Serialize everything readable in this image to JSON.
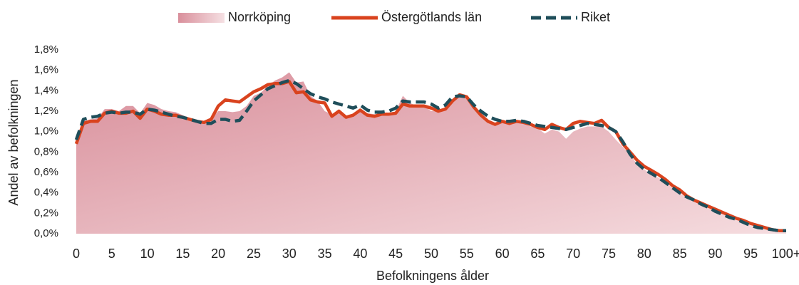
{
  "chart_data": {
    "type": "line",
    "x": [
      0,
      1,
      2,
      3,
      4,
      5,
      6,
      7,
      8,
      9,
      10,
      11,
      12,
      13,
      14,
      15,
      16,
      17,
      18,
      19,
      20,
      21,
      22,
      23,
      24,
      25,
      26,
      27,
      28,
      29,
      30,
      31,
      32,
      33,
      34,
      35,
      36,
      37,
      38,
      39,
      40,
      41,
      42,
      43,
      44,
      45,
      46,
      47,
      48,
      49,
      50,
      51,
      52,
      53,
      54,
      55,
      56,
      57,
      58,
      59,
      60,
      61,
      62,
      63,
      64,
      65,
      66,
      67,
      68,
      69,
      70,
      71,
      72,
      73,
      74,
      75,
      76,
      77,
      78,
      79,
      80,
      81,
      82,
      83,
      84,
      85,
      86,
      87,
      88,
      89,
      90,
      91,
      92,
      93,
      94,
      95,
      96,
      97,
      98,
      99,
      100
    ],
    "series": [
      {
        "name": "Norrköping",
        "kind": "area",
        "color": "#dc9ca6",
        "values": [
          0.9,
          1.1,
          1.12,
          1.13,
          1.22,
          1.22,
          1.2,
          1.25,
          1.25,
          1.18,
          1.28,
          1.26,
          1.22,
          1.2,
          1.19,
          1.16,
          1.13,
          1.1,
          1.09,
          1.12,
          1.2,
          1.2,
          1.19,
          1.2,
          1.25,
          1.35,
          1.38,
          1.45,
          1.5,
          1.53,
          1.58,
          1.48,
          1.49,
          1.35,
          1.3,
          1.2,
          1.17,
          1.18,
          1.15,
          1.16,
          1.2,
          1.18,
          1.17,
          1.16,
          1.17,
          1.2,
          1.35,
          1.28,
          1.25,
          1.25,
          1.2,
          1.2,
          1.24,
          1.3,
          1.35,
          1.33,
          1.22,
          1.15,
          1.1,
          1.08,
          1.1,
          1.08,
          1.1,
          1.08,
          1.05,
          1.03,
          0.98,
          1.02,
          1.0,
          0.93,
          1.0,
          1.03,
          1.05,
          1.05,
          1.05,
          1.0,
          0.92,
          0.85,
          0.78,
          0.68,
          0.63,
          0.58,
          0.55,
          0.5,
          0.45,
          0.4,
          0.35,
          0.32,
          0.3,
          0.27,
          0.23,
          0.2,
          0.17,
          0.14,
          0.11,
          0.08,
          0.06,
          0.05,
          0.04,
          0.03,
          0.03
        ]
      },
      {
        "name": "Östergötlands län",
        "kind": "line",
        "color": "#d9431e",
        "values": [
          0.88,
          1.08,
          1.1,
          1.1,
          1.18,
          1.2,
          1.18,
          1.18,
          1.2,
          1.13,
          1.22,
          1.2,
          1.17,
          1.16,
          1.16,
          1.14,
          1.12,
          1.1,
          1.09,
          1.12,
          1.25,
          1.31,
          1.3,
          1.29,
          1.34,
          1.39,
          1.42,
          1.46,
          1.47,
          1.47,
          1.49,
          1.38,
          1.39,
          1.31,
          1.29,
          1.28,
          1.15,
          1.2,
          1.14,
          1.16,
          1.21,
          1.16,
          1.15,
          1.17,
          1.17,
          1.18,
          1.27,
          1.25,
          1.25,
          1.25,
          1.23,
          1.2,
          1.22,
          1.3,
          1.36,
          1.34,
          1.24,
          1.16,
          1.1,
          1.07,
          1.1,
          1.08,
          1.1,
          1.09,
          1.07,
          1.04,
          1.02,
          1.07,
          1.04,
          1.02,
          1.08,
          1.1,
          1.09,
          1.08,
          1.11,
          1.04,
          1.0,
          0.88,
          0.8,
          0.72,
          0.66,
          0.62,
          0.58,
          0.53,
          0.47,
          0.43,
          0.37,
          0.33,
          0.3,
          0.27,
          0.24,
          0.21,
          0.18,
          0.15,
          0.13,
          0.1,
          0.08,
          0.06,
          0.04,
          0.03,
          0.03
        ]
      },
      {
        "name": "Riket",
        "kind": "dashed",
        "color": "#1f4e5a",
        "values": [
          0.92,
          1.12,
          1.14,
          1.15,
          1.18,
          1.19,
          1.18,
          1.19,
          1.19,
          1.17,
          1.22,
          1.21,
          1.19,
          1.17,
          1.15,
          1.14,
          1.12,
          1.1,
          1.08,
          1.08,
          1.12,
          1.12,
          1.1,
          1.11,
          1.2,
          1.3,
          1.36,
          1.42,
          1.45,
          1.48,
          1.5,
          1.47,
          1.42,
          1.37,
          1.34,
          1.32,
          1.29,
          1.27,
          1.25,
          1.23,
          1.26,
          1.21,
          1.19,
          1.19,
          1.2,
          1.23,
          1.3,
          1.29,
          1.29,
          1.29,
          1.27,
          1.23,
          1.26,
          1.34,
          1.35,
          1.34,
          1.26,
          1.2,
          1.15,
          1.12,
          1.1,
          1.1,
          1.11,
          1.1,
          1.08,
          1.06,
          1.05,
          1.04,
          1.03,
          1.02,
          1.04,
          1.06,
          1.08,
          1.07,
          1.06,
          1.04,
          1.0,
          0.9,
          0.78,
          0.69,
          0.63,
          0.59,
          0.55,
          0.5,
          0.45,
          0.4,
          0.36,
          0.33,
          0.29,
          0.26,
          0.22,
          0.19,
          0.16,
          0.14,
          0.11,
          0.08,
          0.06,
          0.05,
          0.04,
          0.03,
          0.03
        ]
      }
    ],
    "xlabel": "Befolkningens ålder",
    "ylabel": "Andel av befolkningen",
    "xlim": [
      0,
      100
    ],
    "xticks": [
      0,
      5,
      10,
      15,
      20,
      25,
      30,
      35,
      40,
      45,
      50,
      55,
      60,
      65,
      70,
      75,
      80,
      85,
      90,
      95,
      {
        "value": 100,
        "label": "100+"
      }
    ],
    "ylim": [
      0,
      1.8
    ],
    "yticks": [
      {
        "value": 0,
        "label": "0,0%"
      },
      {
        "value": 0.2,
        "label": "0,2%"
      },
      {
        "value": 0.4,
        "label": "0,4%"
      },
      {
        "value": 0.6,
        "label": "0,6%"
      },
      {
        "value": 0.8,
        "label": "0,8%"
      },
      {
        "value": 1.0,
        "label": "1,0%"
      },
      {
        "value": 1.2,
        "label": "1,2%"
      },
      {
        "value": 1.4,
        "label": "1,4%"
      },
      {
        "value": 1.6,
        "label": "1,6%"
      },
      {
        "value": 1.8,
        "label": "1,8%"
      }
    ],
    "grid": false,
    "legend": "top"
  }
}
